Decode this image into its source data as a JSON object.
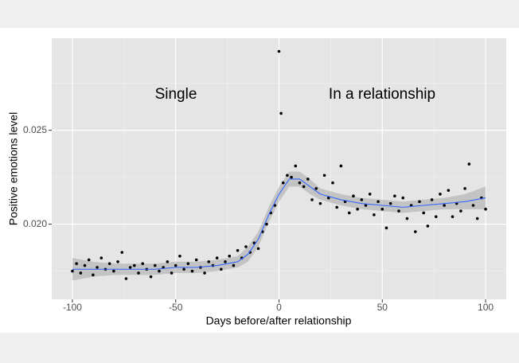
{
  "chart_data": {
    "type": "scatter",
    "xlabel": "Days before/after relationship",
    "ylabel": "Positive emotions level",
    "annotations": [
      "Single",
      "In a relationship"
    ],
    "xlim": [
      -110,
      110
    ],
    "ylim": [
      0.016,
      0.0299
    ],
    "xticks": [
      -100,
      -50,
      0,
      50,
      100
    ],
    "yticks": [
      {
        "value": 0.02,
        "label": "0.020"
      },
      {
        "value": 0.025,
        "label": "0.025"
      }
    ],
    "x_minor_grid": [
      -75,
      -25,
      25,
      75
    ],
    "y_minor_grid": [
      0.0175,
      0.0225,
      0.0275
    ],
    "grid": true,
    "color": "#000000",
    "x": [
      -100,
      -98,
      -96,
      -94,
      -92,
      -90,
      -88,
      -86,
      -84,
      -82,
      -80,
      -78,
      -76,
      -74,
      -72,
      -70,
      -68,
      -66,
      -64,
      -62,
      -60,
      -58,
      -56,
      -54,
      -52,
      -50,
      -48,
      -46,
      -44,
      -42,
      -40,
      -38,
      -36,
      -34,
      -32,
      -30,
      -28,
      -26,
      -24,
      -22,
      -20,
      -18,
      -16,
      -14,
      -12,
      -10,
      -8,
      -6,
      -4,
      -2,
      0,
      1,
      2,
      4,
      6,
      8,
      10,
      12,
      14,
      16,
      18,
      20,
      22,
      24,
      26,
      28,
      30,
      32,
      34,
      36,
      38,
      40,
      42,
      44,
      46,
      48,
      50,
      52,
      54,
      56,
      58,
      60,
      62,
      64,
      66,
      68,
      70,
      72,
      74,
      76,
      78,
      80,
      82,
      84,
      86,
      88,
      90,
      92,
      94,
      96,
      98,
      100
    ],
    "values": [
      0.0175,
      0.0179,
      0.0174,
      0.0178,
      0.0181,
      0.0173,
      0.0177,
      0.0182,
      0.0176,
      0.0179,
      0.0175,
      0.018,
      0.0185,
      0.0171,
      0.0177,
      0.0178,
      0.0174,
      0.0179,
      0.0176,
      0.0172,
      0.0178,
      0.0175,
      0.0177,
      0.018,
      0.0174,
      0.0178,
      0.0183,
      0.0176,
      0.0179,
      0.0175,
      0.0181,
      0.0177,
      0.0174,
      0.018,
      0.0178,
      0.0182,
      0.0176,
      0.018,
      0.0183,
      0.0178,
      0.0186,
      0.0182,
      0.0188,
      0.0185,
      0.019,
      0.0187,
      0.0196,
      0.02,
      0.0206,
      0.021,
      0.0292,
      0.0259,
      0.0222,
      0.0226,
      0.0225,
      0.0231,
      0.0222,
      0.022,
      0.0224,
      0.0213,
      0.0219,
      0.0211,
      0.0226,
      0.0214,
      0.0222,
      0.0209,
      0.0231,
      0.0212,
      0.0206,
      0.0215,
      0.0208,
      0.0213,
      0.021,
      0.0216,
      0.0205,
      0.0212,
      0.0208,
      0.0198,
      0.0211,
      0.0215,
      0.0207,
      0.0214,
      0.0203,
      0.021,
      0.0196,
      0.0212,
      0.0206,
      0.0199,
      0.0213,
      0.0204,
      0.0216,
      0.021,
      0.0218,
      0.0204,
      0.0211,
      0.0207,
      0.0219,
      0.0232,
      0.021,
      0.0203,
      0.0214,
      0.0208
    ],
    "fit": {
      "color": "#3366ff",
      "band_color": "#999999",
      "x": [
        -100,
        -90,
        -80,
        -70,
        -60,
        -50,
        -40,
        -30,
        -20,
        -15,
        -10,
        -5,
        0,
        5,
        10,
        15,
        20,
        30,
        40,
        50,
        60,
        70,
        80,
        90,
        100
      ],
      "values": [
        0.0176,
        0.0176,
        0.0176,
        0.0176,
        0.0176,
        0.0177,
        0.0177,
        0.0178,
        0.018,
        0.0184,
        0.0192,
        0.0205,
        0.0216,
        0.0224,
        0.0224,
        0.022,
        0.0216,
        0.0213,
        0.0211,
        0.021,
        0.0209,
        0.021,
        0.0211,
        0.0212,
        0.0214
      ],
      "lower": [
        0.017,
        0.0172,
        0.0173,
        0.0173,
        0.0173,
        0.0174,
        0.0174,
        0.0175,
        0.0177,
        0.018,
        0.0188,
        0.0201,
        0.0212,
        0.022,
        0.022,
        0.0216,
        0.0213,
        0.021,
        0.0208,
        0.0207,
        0.0206,
        0.0207,
        0.0208,
        0.0208,
        0.0208
      ],
      "upper": [
        0.0182,
        0.018,
        0.0179,
        0.0179,
        0.0179,
        0.018,
        0.018,
        0.0181,
        0.0183,
        0.0188,
        0.0196,
        0.0209,
        0.022,
        0.0228,
        0.0228,
        0.0224,
        0.0219,
        0.0216,
        0.0214,
        0.0213,
        0.0212,
        0.0213,
        0.0214,
        0.0216,
        0.022
      ]
    }
  }
}
